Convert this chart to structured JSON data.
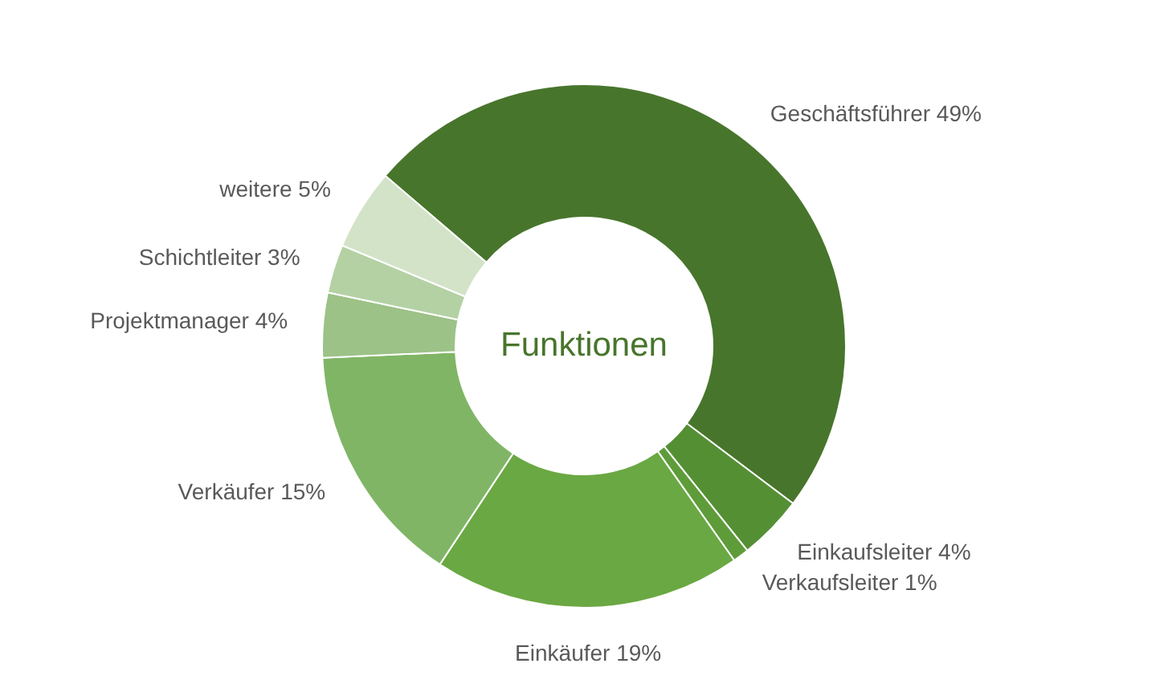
{
  "chart_data": {
    "type": "donut",
    "title": "Funktionen",
    "categories": [
      "Geschäftsführer",
      "Einkaufsleiter",
      "Verkaufsleiter",
      "Einkäufer",
      "Verkäufer",
      "Projektmanager",
      "Schichtleiter",
      "weitere"
    ],
    "values": [
      49,
      4,
      1,
      19,
      15,
      4,
      3,
      5
    ],
    "value_labels": [
      "49%",
      "4%",
      "1%",
      "19%",
      "15%",
      "4%",
      "3%",
      "5%"
    ],
    "colors": [
      "#48752c",
      "#548f34",
      "#5e9c3a",
      "#6aa843",
      "#80b566",
      "#9cc287",
      "#b4d1a4",
      "#d3e3c8"
    ]
  }
}
